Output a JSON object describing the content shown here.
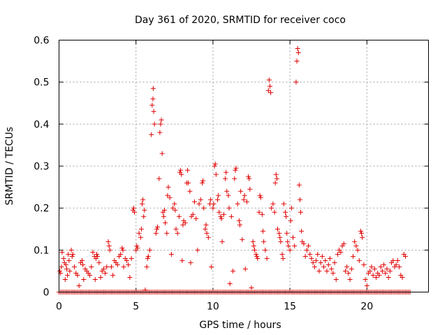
{
  "chart_data": {
    "type": "scatter",
    "title": "Day 361 of 2020, SRMTID for receiver coco",
    "xlabel": "GPS time / hours",
    "ylabel": "SRMTID / TECUs",
    "xlim": [
      0,
      24
    ],
    "ylim": [
      0,
      0.6
    ],
    "xticks": [
      0,
      5,
      10,
      15,
      20
    ],
    "yticks": [
      0,
      0.1,
      0.2,
      0.3,
      0.4,
      0.5,
      0.6
    ],
    "xtick_labels": [
      "0",
      "5",
      "10",
      "15",
      "20"
    ],
    "ytick_labels": [
      "0",
      "0.1",
      "0.2",
      "0.3",
      "0.4",
      "0.5",
      "0.6"
    ],
    "grid": true,
    "marker": "+",
    "series": [
      {
        "name": "SRMTID",
        "color": "#e00000",
        "points": [
          [
            0.05,
            0.05
          ],
          [
            0.1,
            0.045
          ],
          [
            0.15,
            0.06
          ],
          [
            0.2,
            0.095
          ],
          [
            0.3,
            0.08
          ],
          [
            0.35,
            0.07
          ],
          [
            0.4,
            0.03
          ],
          [
            0.45,
            0.065
          ],
          [
            0.5,
            0.055
          ],
          [
            0.55,
            0.04
          ],
          [
            0.6,
            0.09
          ],
          [
            0.65,
            0.075
          ],
          [
            0.7,
            0.05
          ],
          [
            0.8,
            0.1
          ],
          [
            0.85,
            0.085
          ],
          [
            0.9,
            0.09
          ],
          [
            1.0,
            0.06
          ],
          [
            1.1,
            0.045
          ],
          [
            1.2,
            0.04
          ],
          [
            1.3,
            0.015
          ],
          [
            1.4,
            0.07
          ],
          [
            1.5,
            0.075
          ],
          [
            1.55,
            0.065
          ],
          [
            1.6,
            0.03
          ],
          [
            1.7,
            0.055
          ],
          [
            1.8,
            0.05
          ],
          [
            1.9,
            0.045
          ],
          [
            2.0,
            0.04
          ],
          [
            2.1,
            0.06
          ],
          [
            2.2,
            0.095
          ],
          [
            2.3,
            0.085
          ],
          [
            2.35,
            0.03
          ],
          [
            2.4,
            0.08
          ],
          [
            2.45,
            0.09
          ],
          [
            2.5,
            0.085
          ],
          [
            2.6,
            0.07
          ],
          [
            2.7,
            0.035
          ],
          [
            2.8,
            0.05
          ],
          [
            2.9,
            0.055
          ],
          [
            3.0,
            0.045
          ],
          [
            3.1,
            0.06
          ],
          [
            3.2,
            0.12
          ],
          [
            3.25,
            0.11
          ],
          [
            3.3,
            0.1
          ],
          [
            3.4,
            0.06
          ],
          [
            3.5,
            0.04
          ],
          [
            3.6,
            0.075
          ],
          [
            3.7,
            0.07
          ],
          [
            3.8,
            0.065
          ],
          [
            3.9,
            0.085
          ],
          [
            4.0,
            0.09
          ],
          [
            4.1,
            0.105
          ],
          [
            4.15,
            0.1
          ],
          [
            4.2,
            0.06
          ],
          [
            4.3,
            0.08
          ],
          [
            4.4,
            0.075
          ],
          [
            4.5,
            0.065
          ],
          [
            4.6,
            0.035
          ],
          [
            4.7,
            0.08
          ],
          [
            4.8,
            0.195
          ],
          [
            4.85,
            0.2
          ],
          [
            4.9,
            0.19
          ],
          [
            5.0,
            0.1
          ],
          [
            5.05,
            0.11
          ],
          [
            5.1,
            0.105
          ],
          [
            5.2,
            0.14
          ],
          [
            5.3,
            0.13
          ],
          [
            5.35,
            0.15
          ],
          [
            5.4,
            0.21
          ],
          [
            5.45,
            0.22
          ],
          [
            5.5,
            0.18
          ],
          [
            5.55,
            0.195
          ],
          [
            5.6,
            0.005
          ],
          [
            5.7,
            0.06
          ],
          [
            5.75,
            0.08
          ],
          [
            5.8,
            0.085
          ],
          [
            5.9,
            0.1
          ],
          [
            6.0,
            0.375
          ],
          [
            6.05,
            0.445
          ],
          [
            6.1,
            0.46
          ],
          [
            6.12,
            0.485
          ],
          [
            6.15,
            0.43
          ],
          [
            6.2,
            0.4
          ],
          [
            6.3,
            0.14
          ],
          [
            6.35,
            0.15
          ],
          [
            6.4,
            0.155
          ],
          [
            6.5,
            0.27
          ],
          [
            6.55,
            0.38
          ],
          [
            6.6,
            0.4
          ],
          [
            6.65,
            0.41
          ],
          [
            6.7,
            0.33
          ],
          [
            6.75,
            0.19
          ],
          [
            6.8,
            0.18
          ],
          [
            6.85,
            0.195
          ],
          [
            6.9,
            0.165
          ],
          [
            7.0,
            0.14
          ],
          [
            7.05,
            0.23
          ],
          [
            7.1,
            0.25
          ],
          [
            7.2,
            0.225
          ],
          [
            7.3,
            0.09
          ],
          [
            7.4,
            0.2
          ],
          [
            7.5,
            0.21
          ],
          [
            7.55,
            0.195
          ],
          [
            7.6,
            0.15
          ],
          [
            7.7,
            0.14
          ],
          [
            7.8,
            0.18
          ],
          [
            7.85,
            0.285
          ],
          [
            7.9,
            0.29
          ],
          [
            7.95,
            0.28
          ],
          [
            8.0,
            0.075
          ],
          [
            8.05,
            0.16
          ],
          [
            8.1,
            0.17
          ],
          [
            8.2,
            0.165
          ],
          [
            8.3,
            0.26
          ],
          [
            8.35,
            0.29
          ],
          [
            8.4,
            0.26
          ],
          [
            8.5,
            0.24
          ],
          [
            8.55,
            0.07
          ],
          [
            8.6,
            0.18
          ],
          [
            8.7,
            0.185
          ],
          [
            8.8,
            0.215
          ],
          [
            8.9,
            0.175
          ],
          [
            9.0,
            0.1
          ],
          [
            9.1,
            0.21
          ],
          [
            9.2,
            0.22
          ],
          [
            9.3,
            0.26
          ],
          [
            9.35,
            0.265
          ],
          [
            9.4,
            0.2
          ],
          [
            9.5,
            0.15
          ],
          [
            9.55,
            0.16
          ],
          [
            9.6,
            0.14
          ],
          [
            9.7,
            0.13
          ],
          [
            9.8,
            0.21
          ],
          [
            9.85,
            0.22
          ],
          [
            9.9,
            0.06
          ],
          [
            10.0,
            0.2
          ],
          [
            10.05,
            0.21
          ],
          [
            10.1,
            0.3
          ],
          [
            10.15,
            0.305
          ],
          [
            10.2,
            0.28
          ],
          [
            10.3,
            0.22
          ],
          [
            10.35,
            0.23
          ],
          [
            10.4,
            0.19
          ],
          [
            10.5,
            0.18
          ],
          [
            10.55,
            0.175
          ],
          [
            10.6,
            0.12
          ],
          [
            10.7,
            0.185
          ],
          [
            10.8,
            0.27
          ],
          [
            10.85,
            0.285
          ],
          [
            10.9,
            0.24
          ],
          [
            11.0,
            0.23
          ],
          [
            11.05,
            0.2
          ],
          [
            11.1,
            0.02
          ],
          [
            11.2,
            0.18
          ],
          [
            11.3,
            0.05
          ],
          [
            11.4,
            0.27
          ],
          [
            11.45,
            0.29
          ],
          [
            11.5,
            0.295
          ],
          [
            11.6,
            0.21
          ],
          [
            11.7,
            0.17
          ],
          [
            11.75,
            0.16
          ],
          [
            11.8,
            0.24
          ],
          [
            11.9,
            0.125
          ],
          [
            12.0,
            0.22
          ],
          [
            12.05,
            0.23
          ],
          [
            12.1,
            0.055
          ],
          [
            12.2,
            0.215
          ],
          [
            12.3,
            0.275
          ],
          [
            12.35,
            0.27
          ],
          [
            12.4,
            0.245
          ],
          [
            12.5,
            0.01
          ],
          [
            12.6,
            0.12
          ],
          [
            12.65,
            0.11
          ],
          [
            12.7,
            0.1
          ],
          [
            12.8,
            0.09
          ],
          [
            12.85,
            0.085
          ],
          [
            12.9,
            0.08
          ],
          [
            13.0,
            0.19
          ],
          [
            13.05,
            0.23
          ],
          [
            13.1,
            0.225
          ],
          [
            13.2,
            0.185
          ],
          [
            13.25,
            0.145
          ],
          [
            13.3,
            0.12
          ],
          [
            13.4,
            0.1
          ],
          [
            13.5,
            0.08
          ],
          [
            13.6,
            0.48
          ],
          [
            13.65,
            0.505
          ],
          [
            13.7,
            0.49
          ],
          [
            13.75,
            0.475
          ],
          [
            13.8,
            0.2
          ],
          [
            13.9,
            0.21
          ],
          [
            14.0,
            0.19
          ],
          [
            14.05,
            0.26
          ],
          [
            14.1,
            0.28
          ],
          [
            14.15,
            0.27
          ],
          [
            14.2,
            0.15
          ],
          [
            14.3,
            0.14
          ],
          [
            14.35,
            0.13
          ],
          [
            14.4,
            0.12
          ],
          [
            14.5,
            0.09
          ],
          [
            14.55,
            0.08
          ],
          [
            14.6,
            0.21
          ],
          [
            14.7,
            0.19
          ],
          [
            14.75,
            0.18
          ],
          [
            14.8,
            0.14
          ],
          [
            14.85,
            0.12
          ],
          [
            14.9,
            0.11
          ],
          [
            15.0,
            0.1
          ],
          [
            15.05,
            0.17
          ],
          [
            15.1,
            0.2
          ],
          [
            15.2,
            0.13
          ],
          [
            15.3,
            0.11
          ],
          [
            15.4,
            0.5
          ],
          [
            15.45,
            0.55
          ],
          [
            15.5,
            0.58
          ],
          [
            15.55,
            0.57
          ],
          [
            15.6,
            0.255
          ],
          [
            15.65,
            0.22
          ],
          [
            15.7,
            0.19
          ],
          [
            15.75,
            0.145
          ],
          [
            15.8,
            0.12
          ],
          [
            15.9,
            0.115
          ],
          [
            16.0,
            0.085
          ],
          [
            16.1,
            0.1
          ],
          [
            16.2,
            0.11
          ],
          [
            16.3,
            0.09
          ],
          [
            16.4,
            0.08
          ],
          [
            16.5,
            0.07
          ],
          [
            16.6,
            0.06
          ],
          [
            16.7,
            0.075
          ],
          [
            16.8,
            0.09
          ],
          [
            16.9,
            0.05
          ],
          [
            17.0,
            0.07
          ],
          [
            17.1,
            0.085
          ],
          [
            17.2,
            0.06
          ],
          [
            17.3,
            0.075
          ],
          [
            17.4,
            0.05
          ],
          [
            17.5,
            0.065
          ],
          [
            17.6,
            0.08
          ],
          [
            17.7,
            0.055
          ],
          [
            17.8,
            0.045
          ],
          [
            17.9,
            0.07
          ],
          [
            18.0,
            0.03
          ],
          [
            18.1,
            0.09
          ],
          [
            18.2,
            0.1
          ],
          [
            18.3,
            0.095
          ],
          [
            18.4,
            0.11
          ],
          [
            18.5,
            0.115
          ],
          [
            18.6,
            0.05
          ],
          [
            18.7,
            0.06
          ],
          [
            18.8,
            0.045
          ],
          [
            18.9,
            0.03
          ],
          [
            19.0,
            0.055
          ],
          [
            19.1,
            0.085
          ],
          [
            19.2,
            0.12
          ],
          [
            19.3,
            0.11
          ],
          [
            19.4,
            0.1
          ],
          [
            19.5,
            0.075
          ],
          [
            19.6,
            0.145
          ],
          [
            19.65,
            0.14
          ],
          [
            19.7,
            0.13
          ],
          [
            19.8,
            0.065
          ],
          [
            19.9,
            0.03
          ],
          [
            20.0,
            0.015
          ],
          [
            20.1,
            0.045
          ],
          [
            20.2,
            0.05
          ],
          [
            20.3,
            0.06
          ],
          [
            20.4,
            0.04
          ],
          [
            20.5,
            0.055
          ],
          [
            20.6,
            0.035
          ],
          [
            20.7,
            0.045
          ],
          [
            20.8,
            0.04
          ],
          [
            20.9,
            0.06
          ],
          [
            21.0,
            0.05
          ],
          [
            21.1,
            0.065
          ],
          [
            21.2,
            0.045
          ],
          [
            21.3,
            0.055
          ],
          [
            21.4,
            0.035
          ],
          [
            21.5,
            0.05
          ],
          [
            21.6,
            0.07
          ],
          [
            21.7,
            0.075
          ],
          [
            21.8,
            0.06
          ],
          [
            21.9,
            0.065
          ],
          [
            22.0,
            0.075
          ],
          [
            22.1,
            0.06
          ],
          [
            22.2,
            0.04
          ],
          [
            22.3,
            0.035
          ],
          [
            22.4,
            0.09
          ],
          [
            22.5,
            0.085
          ]
        ]
      }
    ],
    "zero_points_x_range": [
      0,
      22.8
    ],
    "zero_points_step": 0.1
  }
}
